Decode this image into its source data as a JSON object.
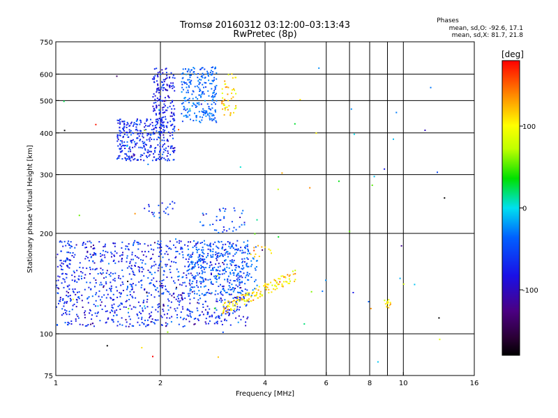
{
  "chart_data": {
    "type": "scatter",
    "title": "Tromsø 20160312 03:12:00–03:13:43",
    "subtitle": "RwPretec (8p)",
    "stats": {
      "header": "Phases",
      "line_o": "mean, sd,O: -92.6, 17.1",
      "line_x": "mean, sd,X: 81.7, 21.8"
    },
    "xlabel": "Frequency [MHz]",
    "ylabel": "Stationary phase Virtual Height [km]",
    "x_scale": "log",
    "y_scale": "log",
    "xlim": [
      1,
      16
    ],
    "ylim": [
      75,
      750
    ],
    "x_ticks": [
      1,
      2,
      4,
      6,
      8,
      10,
      16
    ],
    "x_tick_labels": [
      "1",
      "2",
      "4",
      "6",
      "8",
      "10",
      "16"
    ],
    "x_grid": [
      2,
      4,
      6,
      7,
      8,
      9,
      10
    ],
    "y_ticks": [
      75,
      100,
      200,
      300,
      400,
      500,
      600,
      750
    ],
    "y_tick_labels": [
      "75",
      "100",
      "200",
      "300",
      "400",
      "500",
      "600",
      "750"
    ],
    "y_grid": [
      100,
      200,
      300,
      400,
      500,
      600
    ],
    "grid": true,
    "colorbar": {
      "label": "[deg]",
      "range": [
        -180,
        180
      ],
      "ticks": [
        100,
        0,
        -100
      ],
      "tick_labels": [
        "100",
        "0",
        "-100"
      ]
    },
    "series": [
      {
        "fmin": 1.0,
        "fmax": 3.6,
        "hmin": 105,
        "hmax": 190,
        "phase": -95,
        "phase_sd": 15,
        "count": 1100,
        "spread": "band"
      },
      {
        "fmin": 2.4,
        "fmax": 3.8,
        "hmin": 130,
        "hmax": 190,
        "phase": -70,
        "phase_sd": 12,
        "count": 250,
        "spread": "band"
      },
      {
        "fmin": 1.5,
        "fmax": 2.2,
        "hmin": 330,
        "hmax": 440,
        "phase": -95,
        "phase_sd": 12,
        "count": 320,
        "spread": "box"
      },
      {
        "fmin": 1.9,
        "fmax": 2.2,
        "hmin": 400,
        "hmax": 630,
        "phase": -100,
        "phase_sd": 10,
        "count": 180,
        "spread": "box"
      },
      {
        "fmin": 2.3,
        "fmax": 2.9,
        "hmin": 430,
        "hmax": 630,
        "phase": -70,
        "phase_sd": 14,
        "count": 240,
        "spread": "box"
      },
      {
        "fmin": 1.8,
        "fmax": 2.2,
        "hmin": 225,
        "hmax": 250,
        "phase": -90,
        "phase_sd": 12,
        "count": 20,
        "spread": "box"
      },
      {
        "fmin": 2.6,
        "fmax": 3.5,
        "hmin": 200,
        "hmax": 240,
        "phase": -80,
        "phase_sd": 15,
        "count": 40,
        "spread": "box"
      },
      {
        "fmin": 3.0,
        "fmax": 3.3,
        "hmin": 440,
        "hmax": 610,
        "phase": 110,
        "phase_sd": 20,
        "count": 45,
        "spread": "box"
      },
      {
        "fmin": 3.0,
        "fmax": 4.9,
        "hmin": 118,
        "hmax": 150,
        "phase": 110,
        "phase_sd": 18,
        "count": 140,
        "spread": "rising"
      },
      {
        "fmin": 3.6,
        "fmax": 4.3,
        "hmin": 170,
        "hmax": 185,
        "phase": 120,
        "phase_sd": 15,
        "count": 12,
        "spread": "box"
      },
      {
        "fmin": 8.8,
        "fmax": 9.2,
        "hmin": 118,
        "hmax": 128,
        "phase": 100,
        "phase_sd": 15,
        "count": 14,
        "spread": "box"
      },
      {
        "fmin": 1.05,
        "fmax": 14.0,
        "hmin": 80,
        "hmax": 650,
        "phase": 0,
        "phase_sd": 100,
        "count": 70,
        "spread": "sparse"
      }
    ]
  }
}
